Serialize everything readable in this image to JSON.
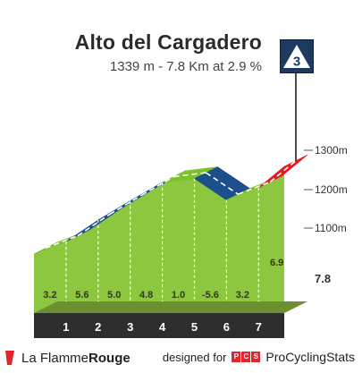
{
  "climb": {
    "name": "Alto del Cargadero",
    "summary": "1339 m - 7.8 Km at 2.9 %",
    "category": "3"
  },
  "chart_data": {
    "type": "area",
    "total_distance_label": "7.8",
    "altitude_labels": [
      "1300m",
      "1200m",
      "1100m"
    ],
    "km_labels": [
      "1",
      "2",
      "3",
      "4",
      "5",
      "6",
      "7"
    ],
    "segments": [
      {
        "km": 1,
        "gradient": 3.2,
        "label": "3.2",
        "color": "#7bc12b"
      },
      {
        "km": 2,
        "gradient": 5.6,
        "label": "5.6",
        "color": "#1d4f8c"
      },
      {
        "km": 3,
        "gradient": 5.0,
        "label": "5.0",
        "color": "#1d4f8c"
      },
      {
        "km": 4,
        "gradient": 4.8,
        "label": "4.8",
        "color": "#1d4f8c"
      },
      {
        "km": 5,
        "gradient": 1.0,
        "label": "1.0",
        "color": "#7bc12b"
      },
      {
        "km": 6,
        "gradient": -5.6,
        "label": "-5.6",
        "color": "#1d4f8c"
      },
      {
        "km": 7,
        "gradient": 3.2,
        "label": "3.2",
        "color": "#7bc12b"
      },
      {
        "km": 7.8,
        "gradient": 6.9,
        "label": "6.9",
        "color": "#e31b23"
      }
    ]
  },
  "footer": {
    "brand_prefix": "La Flamme",
    "brand_suffix": "Rouge",
    "designed_for": "designed for",
    "pcs_letters": [
      "P",
      "C",
      "S"
    ],
    "pcs_brand": "ProCyclingStats"
  }
}
